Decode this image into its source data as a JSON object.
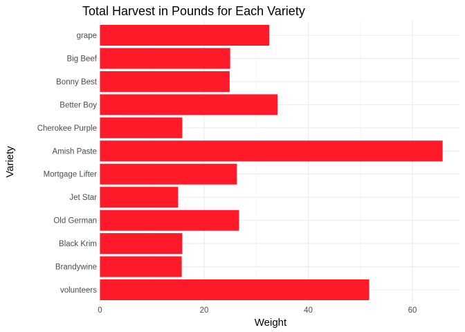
{
  "chart_data": {
    "type": "bar",
    "orientation": "horizontal",
    "title": "Total Harvest in Pounds for Each Variety",
    "xlabel": "Weight",
    "ylabel": "Variety",
    "xlim": [
      0,
      66
    ],
    "x_ticks": [
      0,
      20,
      40,
      60
    ],
    "grid": true,
    "bar_color": "#ff1a2a",
    "categories": [
      "grape",
      "Big Beef",
      "Bonny Best",
      "Better Boy",
      "Cherokee Purple",
      "Amish Paste",
      "Mortgage Lifter",
      "Jet Star",
      "Old German",
      "Black Krim",
      "Brandywine",
      "volunteers"
    ],
    "values": [
      32.5,
      25.0,
      24.9,
      34.1,
      15.8,
      65.8,
      26.3,
      15.0,
      26.7,
      15.8,
      15.7,
      51.7
    ]
  }
}
